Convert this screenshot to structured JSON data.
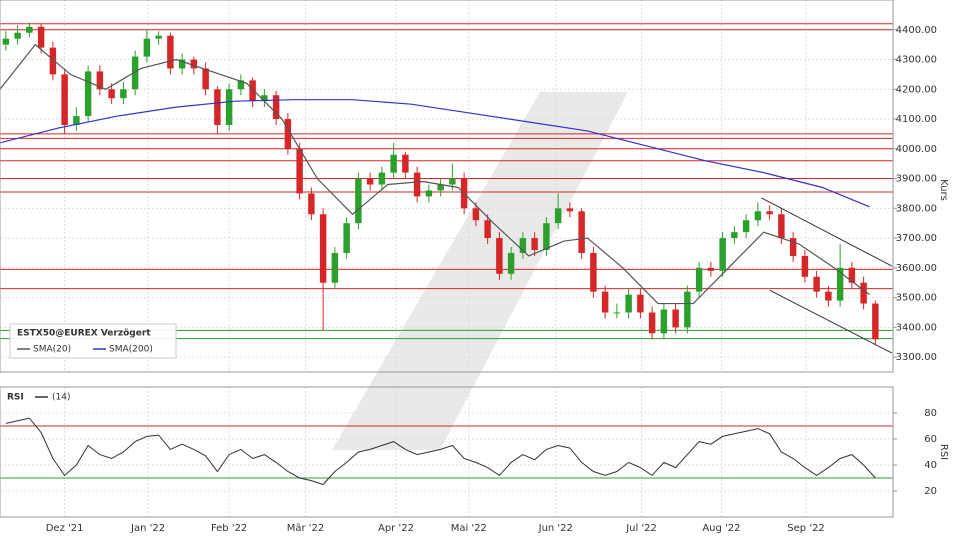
{
  "chart_data": [
    {
      "type": "candlestick",
      "title": "ESTX50@EUREX Verzögert",
      "ylabel": "Kurs",
      "xlim": [
        0,
        76
      ],
      "ylim": [
        3250,
        4500
      ],
      "yticks": [
        {
          "value": 3300,
          "label": "3300.00"
        },
        {
          "value": 3400,
          "label": "3400.00"
        },
        {
          "value": 3500,
          "label": "3500.00"
        },
        {
          "value": 3600,
          "label": "3600.00"
        },
        {
          "value": 3700,
          "label": "3700.00"
        },
        {
          "value": 3800,
          "label": "3800.00"
        },
        {
          "value": 3900,
          "label": "3900.00"
        },
        {
          "value": 4000,
          "label": "4000.00"
        },
        {
          "value": 4100,
          "label": "4100.00"
        },
        {
          "value": 4200,
          "label": "4200.00"
        },
        {
          "value": 4300,
          "label": "4300.00"
        },
        {
          "value": 4400,
          "label": "4400.00"
        }
      ],
      "grid": true,
      "up_color": "#2ca02c",
      "down_color": "#d62728",
      "open": [
        4350,
        4370,
        4390,
        4410,
        4340,
        4250,
        4080,
        4110,
        4260,
        4200,
        4170,
        4200,
        4310,
        4370,
        4380,
        4270,
        4300,
        4270,
        4200,
        4080,
        4200,
        4230,
        4160,
        4180,
        4100,
        4000,
        3850,
        3780,
        3550,
        3650,
        3750,
        3900,
        3880,
        3920,
        3980,
        3920,
        3840,
        3860,
        3880,
        3900,
        3800,
        3760,
        3700,
        3580,
        3650,
        3700,
        3660,
        3750,
        3800,
        3790,
        3650,
        3520,
        3450,
        3450,
        3510,
        3450,
        3380,
        3460,
        3400,
        3520,
        3600,
        3590,
        3700,
        3720,
        3760,
        3790,
        3780,
        3700,
        3640,
        3570,
        3520,
        3490,
        3600,
        3550,
        3480
      ],
      "high": [
        4395,
        4415,
        4425,
        4420,
        4360,
        4270,
        4140,
        4280,
        4280,
        4220,
        4225,
        4330,
        4400,
        4395,
        4390,
        4320,
        4310,
        4290,
        4210,
        4220,
        4250,
        4240,
        4200,
        4195,
        4120,
        4020,
        3870,
        3800,
        3670,
        3770,
        3920,
        3920,
        3940,
        4020,
        3990,
        3940,
        3880,
        3900,
        3950,
        3920,
        3820,
        3780,
        3720,
        3670,
        3720,
        3720,
        3770,
        3850,
        3820,
        3800,
        3670,
        3540,
        3480,
        3530,
        3530,
        3470,
        3480,
        3480,
        3540,
        3620,
        3620,
        3720,
        3740,
        3780,
        3820,
        3810,
        3800,
        3720,
        3660,
        3590,
        3540,
        3680,
        3620,
        3570,
        3490
      ],
      "low": [
        4330,
        4350,
        4375,
        4320,
        4230,
        4050,
        4060,
        4090,
        4180,
        4150,
        4150,
        4180,
        4290,
        4350,
        4250,
        4250,
        4250,
        4180,
        4050,
        4060,
        4180,
        4140,
        4140,
        4080,
        3980,
        3830,
        3760,
        3390,
        3530,
        3630,
        3730,
        3860,
        3860,
        3900,
        3900,
        3820,
        3820,
        3840,
        3860,
        3780,
        3740,
        3680,
        3560,
        3560,
        3630,
        3640,
        3640,
        3730,
        3770,
        3630,
        3500,
        3430,
        3430,
        3430,
        3430,
        3360,
        3360,
        3380,
        3380,
        3500,
        3570,
        3570,
        3680,
        3700,
        3740,
        3760,
        3680,
        3620,
        3550,
        3500,
        3470,
        3470,
        3530,
        3460,
        3340
      ],
      "close": [
        4370,
        4390,
        4410,
        4340,
        4250,
        4080,
        4110,
        4260,
        4200,
        4170,
        4200,
        4310,
        4370,
        4380,
        4270,
        4300,
        4270,
        4200,
        4080,
        4200,
        4230,
        4160,
        4180,
        4100,
        4000,
        3850,
        3780,
        3550,
        3650,
        3750,
        3900,
        3880,
        3920,
        3980,
        3920,
        3840,
        3860,
        3880,
        3900,
        3800,
        3760,
        3700,
        3580,
        3650,
        3700,
        3660,
        3750,
        3800,
        3790,
        3650,
        3520,
        3450,
        3450,
        3510,
        3450,
        3380,
        3460,
        3400,
        3520,
        3600,
        3590,
        3700,
        3720,
        3760,
        3790,
        3780,
        3700,
        3640,
        3570,
        3520,
        3490,
        3600,
        3550,
        3480,
        3360
      ],
      "series": [
        {
          "name": "SMA(20)",
          "color": "#555555",
          "x": [
            0,
            3,
            6,
            9,
            12,
            15,
            18,
            21,
            24,
            27,
            30,
            33,
            36,
            39,
            42,
            45,
            48,
            50,
            53,
            56,
            59,
            62,
            65,
            68,
            71,
            74
          ],
          "values": [
            4200,
            4350,
            4250,
            4200,
            4270,
            4300,
            4260,
            4220,
            4100,
            3900,
            3780,
            3880,
            3890,
            3870,
            3750,
            3640,
            3690,
            3700,
            3600,
            3480,
            3480,
            3600,
            3720,
            3680,
            3600,
            3510
          ]
        },
        {
          "name": "SMA(200)",
          "color": "#3333cc",
          "x": [
            0,
            5,
            10,
            15,
            20,
            25,
            30,
            35,
            40,
            45,
            50,
            55,
            60,
            65,
            70,
            74
          ],
          "values": [
            4020,
            4070,
            4110,
            4140,
            4160,
            4165,
            4165,
            4150,
            4120,
            4090,
            4060,
            4010,
            3960,
            3920,
            3870,
            3805
          ]
        }
      ],
      "levels": [
        {
          "value": 4420,
          "color": "#d62728"
        },
        {
          "value": 4400,
          "color": "#d62728"
        },
        {
          "value": 4050,
          "color": "#d62728"
        },
        {
          "value": 4035,
          "color": "#d62728"
        },
        {
          "value": 4000,
          "color": "#d62728"
        },
        {
          "value": 3960,
          "color": "#d62728"
        },
        {
          "value": 3900,
          "color": "#d62728"
        },
        {
          "value": 3855,
          "color": "#d62728"
        },
        {
          "value": 3595,
          "color": "#d62728"
        },
        {
          "value": 3530,
          "color": "#d62728"
        },
        {
          "value": 3390,
          "color": "#2ca02c"
        },
        {
          "value": 3362,
          "color": "#2ca02c"
        }
      ],
      "trendlines": [
        {
          "x": [
            64.8,
            75.9
          ],
          "values": [
            3835,
            3606
          ]
        },
        {
          "x": [
            65.5,
            75.9
          ],
          "values": [
            3525,
            3314
          ]
        }
      ]
    },
    {
      "type": "line",
      "title": "RSI",
      "ylabel": "RSI",
      "xlim": [
        0,
        76
      ],
      "ylim": [
        0,
        100
      ],
      "yticks": [
        20,
        40,
        60,
        80
      ],
      "grid": true,
      "xticks": [
        {
          "value": 5.5,
          "label": "Dez '21"
        },
        {
          "value": 12.6,
          "label": "Jan '22"
        },
        {
          "value": 19.5,
          "label": "Feb '22"
        },
        {
          "value": 26,
          "label": "Mär '22"
        },
        {
          "value": 33.7,
          "label": "Apr '22"
        },
        {
          "value": 39.9,
          "label": "Mai '22"
        },
        {
          "value": 47.3,
          "label": "Jun '22"
        },
        {
          "value": 54.6,
          "label": "Jul '22"
        },
        {
          "value": 61.4,
          "label": "Aug '22"
        },
        {
          "value": 68.6,
          "label": "Sep '22"
        }
      ],
      "series": [
        {
          "name": "(14)",
          "color": "#333333",
          "values": [
            72,
            74,
            76,
            65,
            45,
            32,
            40,
            55,
            48,
            45,
            50,
            58,
            62,
            63,
            52,
            56,
            52,
            47,
            35,
            48,
            52,
            45,
            48,
            42,
            35,
            30,
            28,
            25,
            35,
            42,
            50,
            52,
            55,
            58,
            52,
            48,
            50,
            52,
            55,
            45,
            42,
            38,
            32,
            42,
            48,
            44,
            52,
            55,
            53,
            42,
            35,
            32,
            35,
            42,
            38,
            32,
            42,
            38,
            48,
            58,
            56,
            62,
            64,
            66,
            68,
            64,
            50,
            45,
            38,
            32,
            38,
            45,
            48,
            40,
            30
          ]
        }
      ],
      "levels": [
        {
          "value": 70,
          "color": "#d62728"
        },
        {
          "value": 30,
          "color": "#2ca02c"
        }
      ]
    }
  ]
}
